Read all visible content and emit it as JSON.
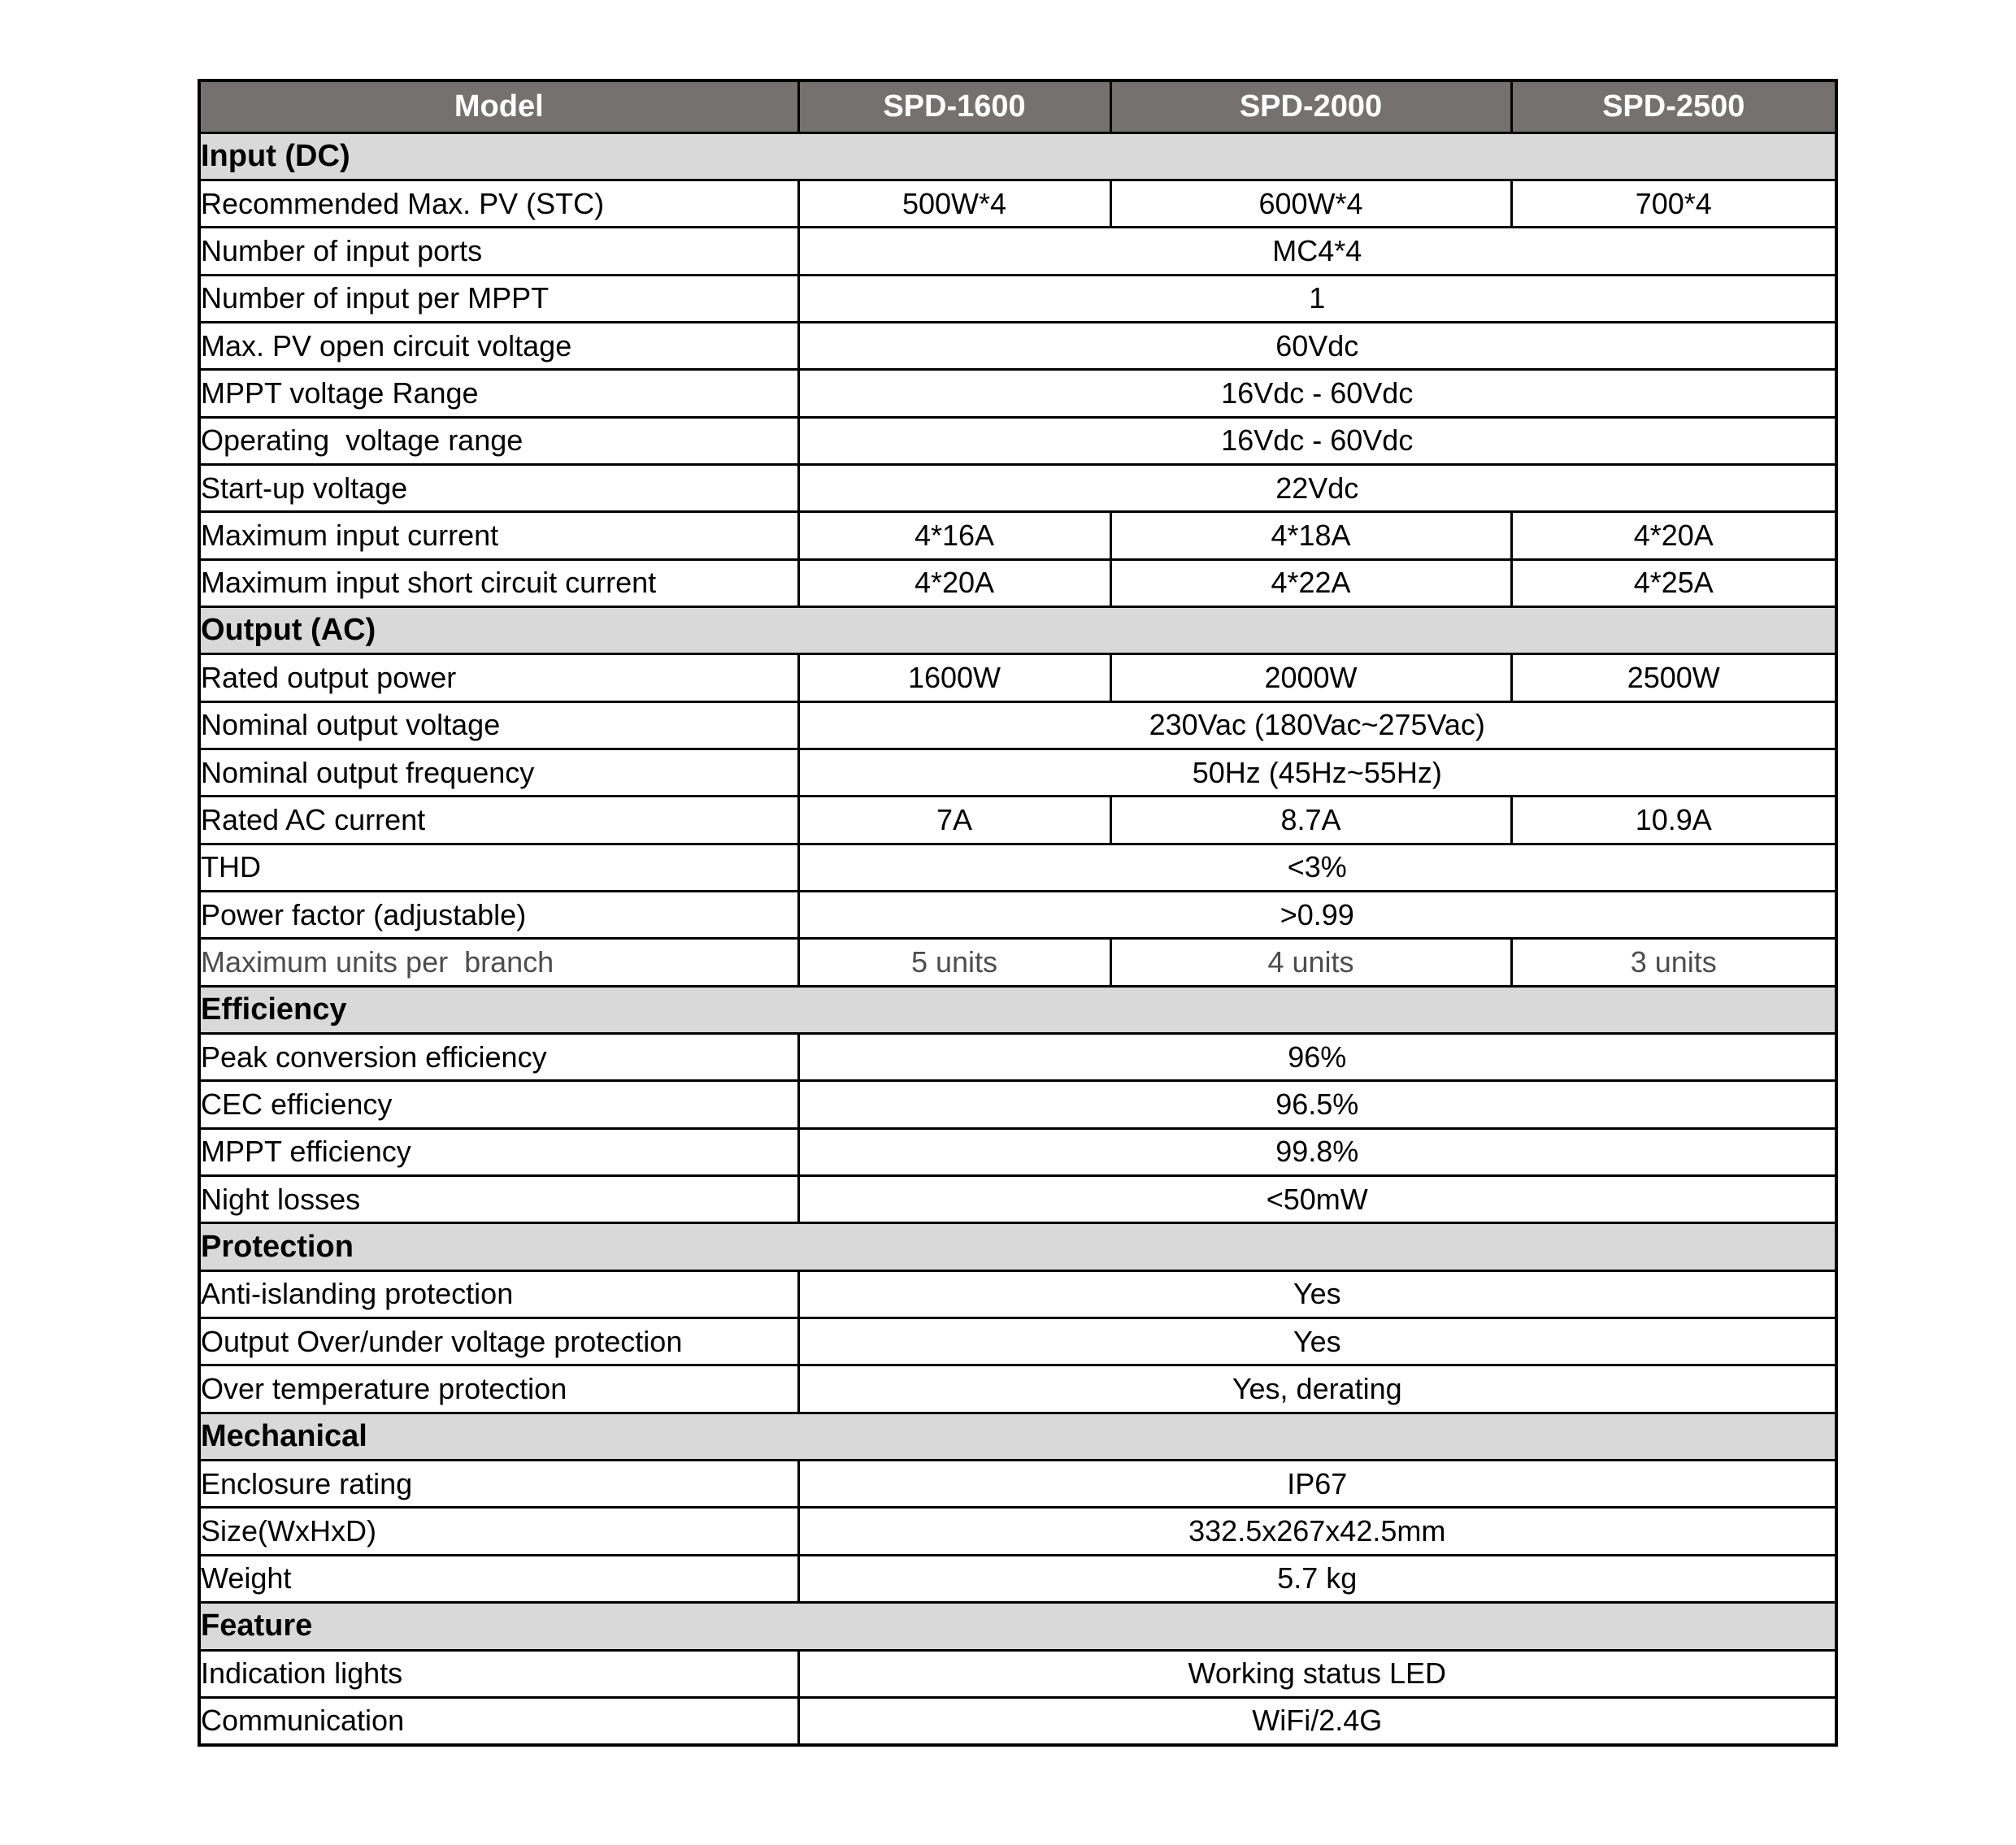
{
  "page": {
    "background": "#ffffff"
  },
  "table": {
    "colors": {
      "header_bg": "#767171",
      "header_text": "#ffffff",
      "section_bg": "#d9d9d9",
      "border": "#000000",
      "text": "#000000",
      "muted_text": "#4d4d4d"
    },
    "header": {
      "columns": [
        "Model",
        "SPD-1600",
        "SPD-2000",
        "SPD-2500"
      ]
    },
    "sections": [
      {
        "title": "Input (DC)",
        "rows": [
          {
            "label": "Recommended Max. PV (STC)",
            "values": [
              "500W*4",
              "600W*4",
              "700*4"
            ]
          },
          {
            "label": "Number of input ports",
            "value": "MC4*4"
          },
          {
            "label": "Number of input per MPPT",
            "value": "1"
          },
          {
            "label": "Max. PV open circuit voltage",
            "value": "60Vdc"
          },
          {
            "label": "MPPT voltage Range",
            "value": "16Vdc - 60Vdc"
          },
          {
            "label": "Operating  voltage range",
            "value": "16Vdc - 60Vdc"
          },
          {
            "label": "Start-up voltage",
            "value": "22Vdc"
          },
          {
            "label": "Maximum input current",
            "values": [
              "4*16A",
              "4*18A",
              "4*20A"
            ]
          },
          {
            "label": "Maximum input short circuit current",
            "values": [
              "4*20A",
              "4*22A",
              "4*25A"
            ]
          }
        ]
      },
      {
        "title": "Output (AC)",
        "rows": [
          {
            "label": "Rated output power",
            "values": [
              "1600W",
              "2000W",
              "2500W"
            ]
          },
          {
            "label": "Nominal output voltage",
            "value": "230Vac (180Vac~275Vac)"
          },
          {
            "label": "Nominal output frequency",
            "value": "50Hz (45Hz~55Hz)"
          },
          {
            "label": "Rated AC current",
            "values": [
              "7A",
              "8.7A",
              "10.9A"
            ]
          },
          {
            "label": "THD",
            "value": "<3%"
          },
          {
            "label": "Power factor (adjustable)",
            "value": ">0.99"
          },
          {
            "label": "Maximum units per  branch",
            "values": [
              "5 units",
              "4 units",
              "3 units"
            ],
            "muted": true
          }
        ]
      },
      {
        "title": "Efficiency",
        "rows": [
          {
            "label": "Peak conversion efficiency",
            "value": "96%"
          },
          {
            "label": "CEC efficiency",
            "value": "96.5%"
          },
          {
            "label": "MPPT efficiency",
            "value": "99.8%"
          },
          {
            "label": "Night losses",
            "value": "<50mW"
          }
        ]
      },
      {
        "title": "Protection",
        "rows": [
          {
            "label": "Anti-islanding protection",
            "value": "Yes"
          },
          {
            "label": "Output Over/under voltage protection",
            "value": "Yes"
          },
          {
            "label": "Over temperature protection",
            "value": "Yes, derating"
          }
        ]
      },
      {
        "title": "Mechanical",
        "rows": [
          {
            "label": "Enclosure rating",
            "value": "IP67"
          },
          {
            "label": "Size(WxHxD)",
            "value": "332.5x267x42.5mm"
          },
          {
            "label": "Weight",
            "value": "5.7 kg"
          }
        ]
      },
      {
        "title": "Feature",
        "rows": [
          {
            "label": "Indication lights",
            "value": "Working status LED"
          },
          {
            "label": "Communication",
            "value": "WiFi/2.4G"
          }
        ]
      }
    ]
  }
}
